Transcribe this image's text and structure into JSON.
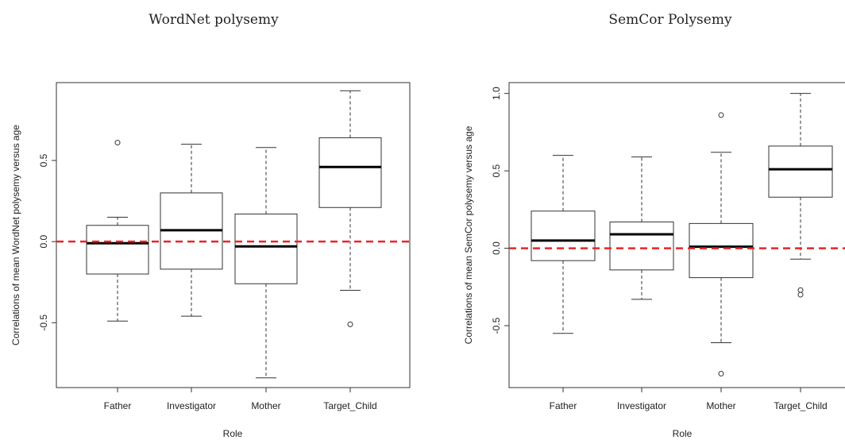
{
  "chart_data": [
    {
      "type": "box",
      "title": "WordNet polysemy",
      "xlabel": "Role",
      "ylabel": "Correlations of mean WordNet polysemy versus age",
      "categories": [
        "Father",
        "Investigator",
        "Mother",
        "Target_Child"
      ],
      "ylim": [
        -0.9,
        0.98
      ],
      "yticks": [
        -0.5,
        0.0,
        0.5
      ],
      "ytick_labels": [
        "-0.5",
        "0.0",
        "0.5"
      ],
      "reference_line": {
        "y": 0.0,
        "color": "#e8252a",
        "style": "dashed"
      },
      "boxes": [
        {
          "category": "Father",
          "whisker_low": -0.49,
          "q1": -0.2,
          "median": -0.01,
          "q3": 0.1,
          "whisker_high": 0.15,
          "outliers": [
            0.61
          ]
        },
        {
          "category": "Investigator",
          "whisker_low": -0.46,
          "q1": -0.17,
          "median": 0.07,
          "q3": 0.3,
          "whisker_high": 0.6,
          "outliers": []
        },
        {
          "category": "Mother",
          "whisker_low": -0.84,
          "q1": -0.26,
          "median": -0.03,
          "q3": 0.17,
          "whisker_high": 0.58,
          "outliers": []
        },
        {
          "category": "Target_Child",
          "whisker_low": -0.3,
          "q1": 0.21,
          "median": 0.46,
          "q3": 0.64,
          "whisker_high": 0.93,
          "outliers": [
            -0.51
          ]
        }
      ]
    },
    {
      "type": "box",
      "title": "SemCor Polysemy",
      "xlabel": "Role",
      "ylabel": "Correlations of mean SemCor polysemy versus age",
      "categories": [
        "Father",
        "Investigator",
        "Mother",
        "Target_Child"
      ],
      "ylim": [
        -0.9,
        1.07
      ],
      "yticks": [
        -0.5,
        0.0,
        0.5,
        1.0
      ],
      "ytick_labels": [
        "-0.5",
        "0.0",
        "0.5",
        "1.0"
      ],
      "reference_line": {
        "y": 0.0,
        "color": "#e8252a",
        "style": "dashed"
      },
      "boxes": [
        {
          "category": "Father",
          "whisker_low": -0.55,
          "q1": -0.08,
          "median": 0.05,
          "q3": 0.24,
          "whisker_high": 0.6,
          "outliers": []
        },
        {
          "category": "Investigator",
          "whisker_low": -0.33,
          "q1": -0.14,
          "median": 0.09,
          "q3": 0.17,
          "whisker_high": 0.59,
          "outliers": []
        },
        {
          "category": "Mother",
          "whisker_low": -0.61,
          "q1": -0.19,
          "median": 0.01,
          "q3": 0.16,
          "whisker_high": 0.62,
          "outliers": [
            0.86,
            -0.81
          ]
        },
        {
          "category": "Target_Child",
          "whisker_low": -0.07,
          "q1": 0.33,
          "median": 0.51,
          "q3": 0.66,
          "whisker_high": 1.0,
          "outliers": [
            -0.27,
            -0.3
          ]
        }
      ]
    }
  ]
}
